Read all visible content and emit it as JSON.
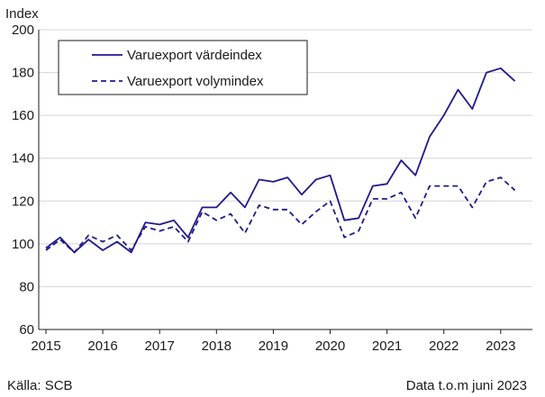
{
  "chart_data": {
    "type": "line",
    "ylabel": "Index",
    "ylim": [
      60,
      200
    ],
    "yticks": [
      60,
      80,
      100,
      120,
      140,
      160,
      180,
      200
    ],
    "xticks": [
      "2015",
      "2016",
      "2017",
      "2018",
      "2019",
      "2020",
      "2021",
      "2022",
      "2023"
    ],
    "x_unit": "quarter",
    "x_start": "2015 Q1",
    "x": [
      "2015 Q1",
      "2015 Q2",
      "2015 Q3",
      "2015 Q4",
      "2016 Q1",
      "2016 Q2",
      "2016 Q3",
      "2016 Q4",
      "2017 Q1",
      "2017 Q2",
      "2017 Q3",
      "2017 Q4",
      "2018 Q1",
      "2018 Q2",
      "2018 Q3",
      "2018 Q4",
      "2019 Q1",
      "2019 Q2",
      "2019 Q3",
      "2019 Q4",
      "2020 Q1",
      "2020 Q2",
      "2020 Q3",
      "2020 Q4",
      "2021 Q1",
      "2021 Q2",
      "2021 Q3",
      "2021 Q4",
      "2022 Q1",
      "2022 Q2",
      "2022 Q3",
      "2022 Q4",
      "2023 Q1",
      "2023 Q2"
    ],
    "grid": "horizontal",
    "legend": "top-left",
    "series": [
      {
        "name": "Varuexport värdeindex",
        "style": "solid",
        "color": "#1f1a8c",
        "values": [
          98,
          103,
          96,
          102,
          97,
          101,
          96,
          110,
          109,
          111,
          103,
          117,
          117,
          124,
          117,
          130,
          129,
          131,
          123,
          130,
          132,
          111,
          112,
          127,
          128,
          139,
          132,
          150,
          160,
          172,
          163,
          180,
          182,
          176
        ]
      },
      {
        "name": "Varuexport volymindex",
        "style": "dashed",
        "color": "#1f1a8c",
        "values": [
          97,
          102,
          96,
          104,
          101,
          104,
          97,
          108,
          106,
          108,
          101,
          115,
          111,
          114,
          105,
          118,
          116,
          116,
          109,
          115,
          120,
          103,
          106,
          121,
          121,
          124,
          112,
          127,
          127,
          127,
          117,
          129,
          131,
          125
        ]
      }
    ]
  },
  "footer": {
    "source": "Källa: SCB",
    "note": "Data t.o.m juni 2023"
  }
}
